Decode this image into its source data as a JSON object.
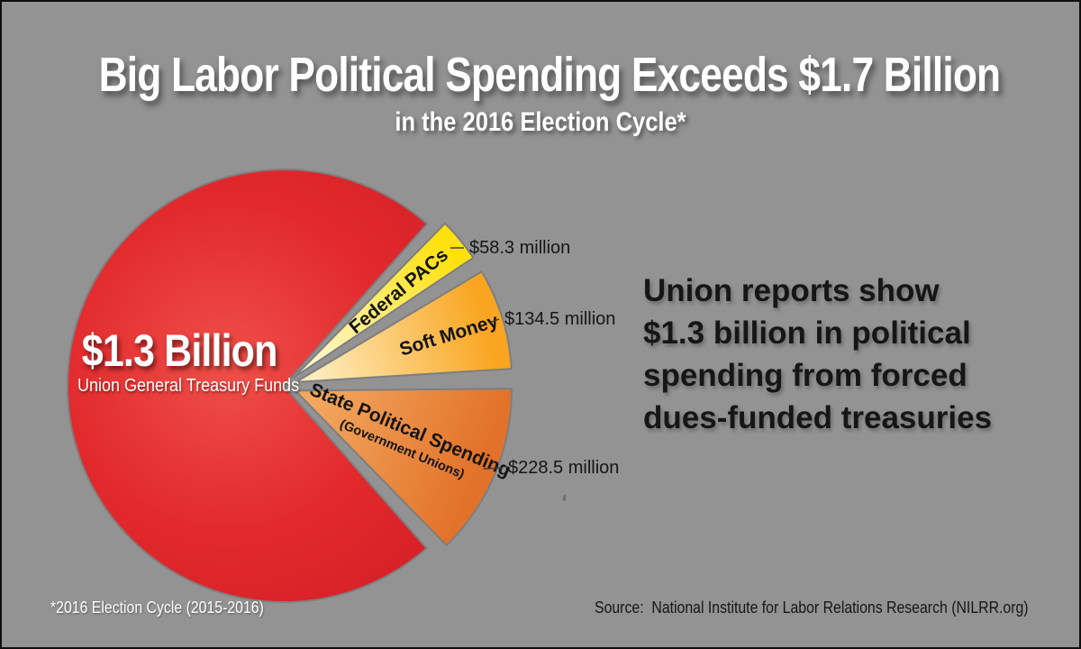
{
  "header": {
    "title": "Big Labor Political Spending Exceeds $1.7 Billion",
    "subtitle": "in the 2016 Election Cycle*"
  },
  "callout": {
    "lines": [
      "Union reports show",
      "$1.3 billion in political",
      "spending from forced",
      "dues-funded treasuries"
    ]
  },
  "footnote": "*2016 Election Cycle (2015-2016)",
  "source": "Source:  National Institute for Labor Relations Research (NILRR.org)",
  "colors": {
    "background": "#939393",
    "frame_border": "#0f0f0f",
    "slice_stroke": "#7e7e7e",
    "leader_line": "#3f3f3f",
    "text_dark": "#161616",
    "text_light": "#ffffff"
  },
  "chart_data": {
    "type": "pie",
    "unit": "USD millions",
    "total": 1721.3,
    "legend_position": "in-slice labels with leader lines",
    "slices": [
      {
        "name": "Union General Treasury Funds",
        "value": 1300,
        "label": "$1.3 Billion",
        "sublabel": "Union General Treasury Funds",
        "exploded": false,
        "color_rim": "#d41f26",
        "color_inner": "#ef5049"
      },
      {
        "name": "Federal PACs",
        "value": 58.3,
        "label": "Federal PACs",
        "amount_label": "$58.3 million",
        "exploded": true,
        "color_rim": "#ffe10e",
        "color_inner": "#fdf7cf"
      },
      {
        "name": "Soft Money",
        "value": 134.5,
        "label": "Soft Money",
        "amount_label": "$134.5 million",
        "exploded": true,
        "color_rim": "#f9a521",
        "color_inner": "#fdecbc"
      },
      {
        "name": "State Political Spending (Government Unions)",
        "value": 228.5,
        "label": "State Political Spending",
        "sublabel": "(Government Unions)",
        "amount_label": "$228.5 million",
        "exploded": true,
        "color_rim": "#e2722a",
        "color_inner": "#f2a75f"
      }
    ]
  }
}
